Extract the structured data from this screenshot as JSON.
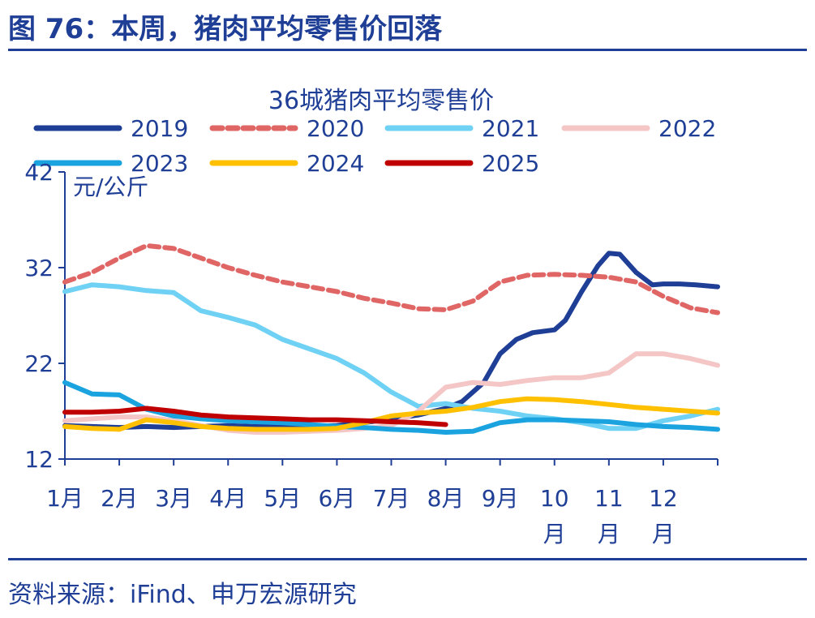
{
  "header": {
    "title": "图 76：本周，猪肉平均零售价回落"
  },
  "footer": {
    "source": "资料来源：iFind、申万宏源研究"
  },
  "chart_data": {
    "type": "line",
    "title": "36城猪肉平均零售价",
    "ylabel": "元/公斤",
    "ylim": [
      12,
      42
    ],
    "yticks": [
      12,
      22,
      32,
      42
    ],
    "xlim": [
      1,
      13
    ],
    "categories": [
      "1月",
      "2月",
      "3月",
      "4月",
      "5月",
      "6月",
      "7月",
      "8月",
      "9月",
      "10\n月",
      "11\n月",
      "12\n月"
    ],
    "legend_position": "top",
    "grid": false,
    "series": [
      {
        "name": "2019",
        "color": "#1f3e96",
        "dash": "",
        "x": [
          1,
          1.5,
          2,
          2.5,
          3,
          3.5,
          4,
          4.5,
          5,
          5.5,
          6,
          6.5,
          7,
          7.5,
          8,
          8.3,
          8.7,
          9,
          9.3,
          9.6,
          10,
          10.2,
          10.5,
          10.8,
          11,
          11.2,
          11.5,
          11.8,
          12,
          12.3,
          12.6,
          13
        ],
        "y": [
          15.5,
          15.4,
          15.3,
          15.4,
          15.3,
          15.4,
          15.5,
          15.4,
          15.5,
          15.4,
          15.5,
          15.8,
          16.2,
          16.6,
          17.3,
          18.0,
          20.0,
          23.0,
          24.5,
          25.2,
          25.5,
          26.5,
          29.5,
          32.2,
          33.5,
          33.4,
          31.5,
          30.2,
          30.3,
          30.3,
          30.2,
          30.0
        ]
      },
      {
        "name": "2020",
        "color": "#e06666",
        "dash": "12,7",
        "x": [
          1,
          1.5,
          2,
          2.5,
          3,
          3.5,
          4,
          4.5,
          5,
          5.5,
          6,
          6.5,
          7,
          7.5,
          8,
          8.5,
          9,
          9.5,
          10,
          10.5,
          11,
          11.5,
          12,
          12.5,
          13
        ],
        "y": [
          30.5,
          31.5,
          33.0,
          34.3,
          34.0,
          33.0,
          32.0,
          31.2,
          30.5,
          30.0,
          29.5,
          28.8,
          28.3,
          27.7,
          27.6,
          28.5,
          30.5,
          31.2,
          31.3,
          31.2,
          31.0,
          30.5,
          29.0,
          27.8,
          27.3
        ]
      },
      {
        "name": "2021",
        "color": "#6fd1f4",
        "dash": "",
        "x": [
          1,
          1.5,
          2,
          2.5,
          3,
          3.5,
          4,
          4.5,
          5,
          5.5,
          6,
          6.5,
          7,
          7.5,
          8,
          8.5,
          9,
          9.5,
          10,
          10.5,
          11,
          11.5,
          12,
          12.5,
          13
        ],
        "y": [
          29.5,
          30.2,
          30.0,
          29.6,
          29.4,
          27.5,
          26.8,
          26.0,
          24.5,
          23.5,
          22.5,
          21.0,
          19.0,
          17.5,
          17.8,
          17.3,
          17.0,
          16.5,
          16.2,
          15.8,
          15.2,
          15.2,
          16.0,
          16.5,
          17.2
        ]
      },
      {
        "name": "2022",
        "color": "#f4c6c6",
        "dash": "",
        "x": [
          1,
          1.5,
          2,
          2.5,
          3,
          3.5,
          4,
          4.5,
          5,
          5.5,
          6,
          6.5,
          7,
          7.5,
          8,
          8.5,
          9,
          9.5,
          10,
          10.5,
          11,
          11.5,
          12,
          12.5,
          13
        ],
        "y": [
          16.0,
          16.2,
          16.4,
          16.4,
          16.0,
          15.5,
          15.0,
          14.8,
          14.8,
          14.9,
          15.0,
          15.2,
          15.5,
          17.0,
          19.5,
          20.0,
          19.8,
          20.2,
          20.5,
          20.5,
          21.0,
          23.0,
          23.0,
          22.5,
          21.8
        ]
      },
      {
        "name": "2023",
        "color": "#1aa3df",
        "dash": "",
        "x": [
          1,
          1.5,
          2,
          2.5,
          3,
          3.5,
          4,
          4.5,
          5,
          5.5,
          6,
          6.5,
          7,
          7.5,
          8,
          8.5,
          9,
          9.5,
          10,
          10.5,
          11,
          11.5,
          12,
          12.5,
          13
        ],
        "y": [
          20.0,
          18.8,
          18.7,
          17.2,
          16.5,
          16.2,
          16.0,
          15.9,
          15.8,
          15.6,
          15.4,
          15.3,
          15.1,
          15.0,
          14.8,
          14.9,
          15.8,
          16.1,
          16.1,
          16.0,
          15.9,
          15.6,
          15.4,
          15.3,
          15.1
        ]
      },
      {
        "name": "2024",
        "color": "#ffc000",
        "dash": "",
        "x": [
          1,
          1.5,
          2,
          2.5,
          3,
          3.5,
          4,
          4.5,
          5,
          5.5,
          6,
          6.5,
          7,
          7.5,
          8,
          8.5,
          9,
          9.5,
          10,
          10.5,
          11,
          11.5,
          12,
          12.5,
          13
        ],
        "y": [
          15.4,
          15.2,
          15.1,
          16.1,
          15.8,
          15.4,
          15.2,
          15.1,
          15.1,
          15.1,
          15.2,
          15.8,
          16.5,
          16.8,
          17.0,
          17.4,
          18.0,
          18.3,
          18.2,
          18.0,
          17.7,
          17.4,
          17.2,
          17.0,
          16.8
        ]
      },
      {
        "name": "2025",
        "color": "#c00000",
        "dash": "",
        "x": [
          1,
          1.5,
          2,
          2.5,
          3,
          3.5,
          4,
          4.5,
          5,
          5.5,
          6,
          6.5,
          7,
          7.5,
          8
        ],
        "y": [
          16.9,
          16.9,
          17.0,
          17.3,
          17.0,
          16.6,
          16.4,
          16.3,
          16.2,
          16.1,
          16.1,
          16.0,
          15.9,
          15.8,
          15.6
        ]
      }
    ]
  }
}
